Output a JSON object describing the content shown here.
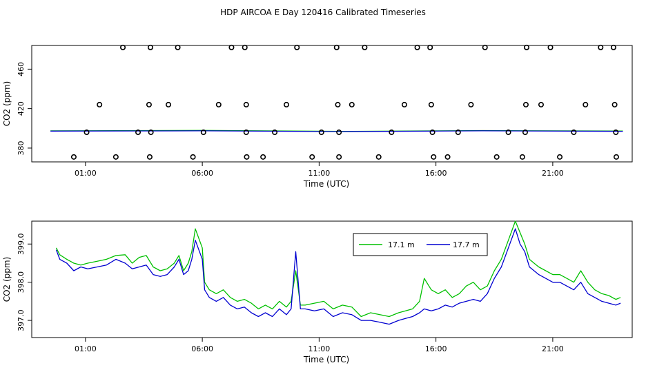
{
  "title": "HDP AIRCOA E  Day 120416  Calibrated Timeseries",
  "colors": {
    "green": "#00c000",
    "blue": "#0000d0",
    "axis": "#000000"
  },
  "chart_data": [
    {
      "type": "scatter",
      "xlabel": "Time (UTC)",
      "ylabel": "CO2 (ppm)",
      "xlim": [
        -1.3,
        24.4
      ],
      "ylim": [
        366,
        484
      ],
      "xticks": [
        1,
        6,
        11,
        16,
        21
      ],
      "xticklabels": [
        "01:00",
        "06:00",
        "11:00",
        "16:00",
        "21:00"
      ],
      "yticks": [
        380,
        420,
        460
      ],
      "yticklabels": [
        "380",
        "420",
        "460"
      ],
      "series": [
        {
          "color": "#00c000",
          "x": [
            -0.5,
            6,
            12,
            18,
            24
          ],
          "y": [
            397.5,
            397.9,
            396.9,
            397.8,
            397.3
          ]
        },
        {
          "color": "#0000d0",
          "x": [
            -0.5,
            6,
            12,
            18,
            24
          ],
          "y": [
            397.2,
            397.5,
            396.7,
            397.5,
            397.0
          ]
        }
      ],
      "points": {
        "x": [
          0.5,
          1.05,
          1.6,
          2.6,
          2.3,
          3.25,
          3.78,
          3.72,
          3.8,
          3.75,
          4.55,
          4.95,
          5.6,
          6.05,
          6.7,
          7.25,
          7.82,
          7.88,
          7.88,
          7.9,
          8.6,
          9.1,
          9.6,
          10.05,
          10.7,
          11.1,
          11.75,
          11.8,
          11.85,
          11.85,
          12.4,
          12.95,
          13.55,
          14.1,
          14.65,
          15.2,
          15.75,
          15.8,
          15.85,
          15.9,
          16.5,
          16.95,
          17.5,
          18.1,
          18.6,
          19.1,
          19.7,
          19.82,
          19.85,
          19.88,
          20.5,
          20.9,
          21.3,
          21.9,
          22.4,
          23.05,
          23.6,
          23.65,
          23.7,
          23.72
        ],
        "y": [
          371,
          396,
          424,
          482,
          371,
          396,
          482,
          424,
          396,
          371,
          424,
          482,
          371,
          396,
          424,
          482,
          482,
          424,
          396,
          371,
          371,
          396,
          424,
          482,
          371,
          396,
          482,
          424,
          396,
          371,
          424,
          482,
          371,
          396,
          424,
          482,
          482,
          424,
          396,
          371,
          371,
          396,
          424,
          482,
          371,
          396,
          371,
          396,
          424,
          482,
          424,
          482,
          371,
          396,
          424,
          482,
          482,
          424,
          396,
          371
        ]
      }
    },
    {
      "type": "line",
      "xlabel": "Time (UTC)",
      "ylabel": "CO2 (ppm)",
      "xlim": [
        -1.3,
        24.4
      ],
      "ylim": [
        396.55,
        399.6
      ],
      "xticks": [
        1,
        6,
        11,
        16,
        21
      ],
      "xticklabels": [
        "01:00",
        "06:00",
        "11:00",
        "16:00",
        "21:00"
      ],
      "yticks": [
        397.0,
        398.0,
        399.0
      ],
      "yticklabels": [
        "397.0",
        "398.0",
        "399.0"
      ],
      "legend_position": "top-right",
      "series": [
        {
          "name": "17.1 m",
          "color": "#00c000",
          "x": [
            -0.25,
            -0.1,
            0.2,
            0.5,
            0.8,
            1.1,
            1.5,
            1.9,
            2.3,
            2.7,
            3.0,
            3.3,
            3.6,
            3.9,
            4.2,
            4.5,
            4.8,
            5.0,
            5.2,
            5.4,
            5.55,
            5.7,
            6.0,
            6.1,
            6.3,
            6.6,
            6.9,
            7.2,
            7.5,
            7.8,
            8.1,
            8.4,
            8.7,
            9.0,
            9.3,
            9.6,
            9.8,
            10.0,
            10.2,
            10.4,
            10.8,
            11.2,
            11.6,
            12.0,
            12.4,
            12.8,
            13.2,
            13.6,
            14.0,
            14.4,
            14.7,
            15.0,
            15.3,
            15.5,
            15.8,
            16.1,
            16.4,
            16.7,
            17.0,
            17.3,
            17.6,
            17.9,
            18.2,
            18.5,
            18.8,
            19.1,
            19.4,
            19.6,
            19.8,
            20.0,
            20.2,
            20.4,
            20.7,
            21.0,
            21.3,
            21.6,
            21.9,
            22.2,
            22.5,
            22.8,
            23.1,
            23.4,
            23.7,
            23.9
          ],
          "y": [
            398.9,
            398.72,
            398.6,
            398.5,
            398.45,
            398.5,
            398.55,
            398.6,
            398.7,
            398.72,
            398.5,
            398.65,
            398.7,
            398.4,
            398.3,
            398.35,
            398.5,
            398.7,
            398.3,
            398.5,
            398.8,
            399.4,
            398.9,
            398.0,
            397.8,
            397.7,
            397.8,
            397.6,
            397.5,
            397.55,
            397.45,
            397.3,
            397.4,
            397.3,
            397.5,
            397.35,
            397.5,
            398.3,
            397.4,
            397.4,
            397.45,
            397.5,
            397.3,
            397.4,
            397.35,
            397.1,
            397.2,
            397.15,
            397.1,
            397.2,
            397.25,
            397.3,
            397.5,
            398.1,
            397.8,
            397.7,
            397.8,
            397.6,
            397.7,
            397.9,
            398.0,
            397.8,
            397.9,
            398.3,
            398.6,
            399.1,
            399.6,
            399.3,
            399.0,
            398.6,
            398.5,
            398.4,
            398.3,
            398.2,
            398.2,
            398.1,
            398.0,
            398.3,
            398.0,
            397.8,
            397.7,
            397.65,
            397.55,
            397.6
          ]
        },
        {
          "name": "17.7 m",
          "color": "#0000d0",
          "x": [
            -0.25,
            -0.1,
            0.2,
            0.5,
            0.8,
            1.1,
            1.5,
            1.9,
            2.3,
            2.7,
            3.0,
            3.3,
            3.6,
            3.9,
            4.2,
            4.5,
            4.8,
            5.0,
            5.2,
            5.4,
            5.55,
            5.7,
            6.0,
            6.1,
            6.3,
            6.6,
            6.9,
            7.2,
            7.5,
            7.8,
            8.1,
            8.4,
            8.7,
            9.0,
            9.3,
            9.6,
            9.8,
            10.0,
            10.2,
            10.4,
            10.8,
            11.2,
            11.6,
            12.0,
            12.4,
            12.8,
            13.2,
            13.6,
            14.0,
            14.4,
            14.7,
            15.0,
            15.3,
            15.5,
            15.8,
            16.1,
            16.4,
            16.7,
            17.0,
            17.3,
            17.6,
            17.9,
            18.2,
            18.5,
            18.8,
            19.1,
            19.4,
            19.6,
            19.8,
            20.0,
            20.2,
            20.4,
            20.7,
            21.0,
            21.3,
            21.6,
            21.9,
            22.2,
            22.5,
            22.8,
            23.1,
            23.4,
            23.7,
            23.9
          ],
          "y": [
            398.85,
            398.6,
            398.5,
            398.3,
            398.4,
            398.35,
            398.4,
            398.45,
            398.6,
            398.5,
            398.35,
            398.4,
            398.45,
            398.2,
            398.15,
            398.2,
            398.4,
            398.6,
            398.2,
            398.3,
            398.6,
            399.1,
            398.6,
            397.8,
            397.6,
            397.5,
            397.6,
            397.4,
            397.3,
            397.35,
            397.2,
            397.1,
            397.2,
            397.1,
            397.3,
            397.15,
            397.3,
            398.8,
            397.3,
            397.3,
            397.25,
            397.3,
            397.1,
            397.2,
            397.15,
            397.0,
            397.0,
            396.95,
            396.9,
            397.0,
            397.05,
            397.1,
            397.2,
            397.3,
            397.25,
            397.3,
            397.4,
            397.35,
            397.45,
            397.5,
            397.55,
            397.5,
            397.7,
            398.1,
            398.4,
            398.9,
            399.4,
            399.0,
            398.8,
            398.4,
            398.3,
            398.2,
            398.1,
            398.0,
            398.0,
            397.9,
            397.8,
            398.0,
            397.7,
            397.6,
            397.5,
            397.45,
            397.4,
            397.45
          ]
        }
      ]
    }
  ]
}
